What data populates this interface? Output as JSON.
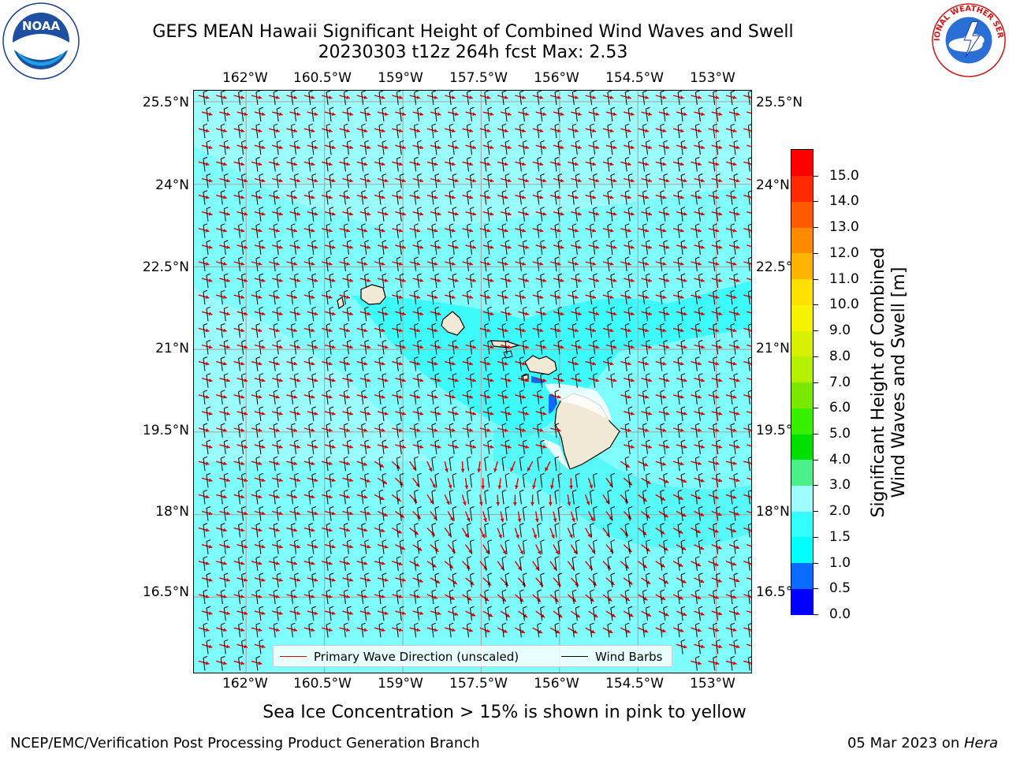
{
  "title": {
    "line1": "GEFS MEAN Hawaii Significant Height of Combined Wind Waves and Swell",
    "line2": "20230303 t12z 264h fcst   Max: 2.53"
  },
  "logos": {
    "left": "noaa-logo",
    "right": "nws-logo",
    "left_text": "NOAA",
    "right_text": "NATIONAL WEATHER SERVICE"
  },
  "map": {
    "lon_ticks": [
      "162°W",
      "160.5°W",
      "159°W",
      "157.5°W",
      "156°W",
      "154.5°W",
      "153°W"
    ],
    "lat_ticks": [
      "25.5°N",
      "24°N",
      "22.5°N",
      "21°N",
      "19.5°N",
      "18°N",
      "16.5°N"
    ],
    "lon_range": [
      -163.0,
      -152.3
    ],
    "lat_range": [
      15.1,
      25.7
    ],
    "ocean_color": "#7ffcfc",
    "land_color": "#efe9d6",
    "wave_arrow_color": "#e00000",
    "barb_color": "#000000",
    "legend": {
      "wave_label": "Primary Wave Direction (unscaled)",
      "barb_label": "Wind Barbs"
    }
  },
  "colorbar": {
    "title_line1": "Significant Height of Combined",
    "title_line2": "Wind Waves and Swell [m]",
    "levels": [
      "0.0",
      "0.5",
      "1.0",
      "1.5",
      "2.0",
      "3.0",
      "4.0",
      "5.0",
      "6.0",
      "7.0",
      "8.0",
      "9.0",
      "10.0",
      "11.0",
      "12.0",
      "13.0",
      "14.0",
      "15.0"
    ],
    "colors": [
      "#0000ff",
      "#0a6bff",
      "#00ffff",
      "#33ffff",
      "#9ffcfc",
      "#4cf08a",
      "#00e000",
      "#36f000",
      "#7ae800",
      "#b4f000",
      "#d8f000",
      "#f6f200",
      "#ffe100",
      "#ffb400",
      "#ff8a00",
      "#ff5a00",
      "#ff2a00",
      "#ff0000"
    ]
  },
  "sub_note": "Sea Ice Concentration > 15% is shown in pink to yellow",
  "footer": {
    "left": "NCEP/EMC/Verification Post Processing Product Generation Branch",
    "date": "05 Mar 2023 on ",
    "host": "Hera"
  }
}
